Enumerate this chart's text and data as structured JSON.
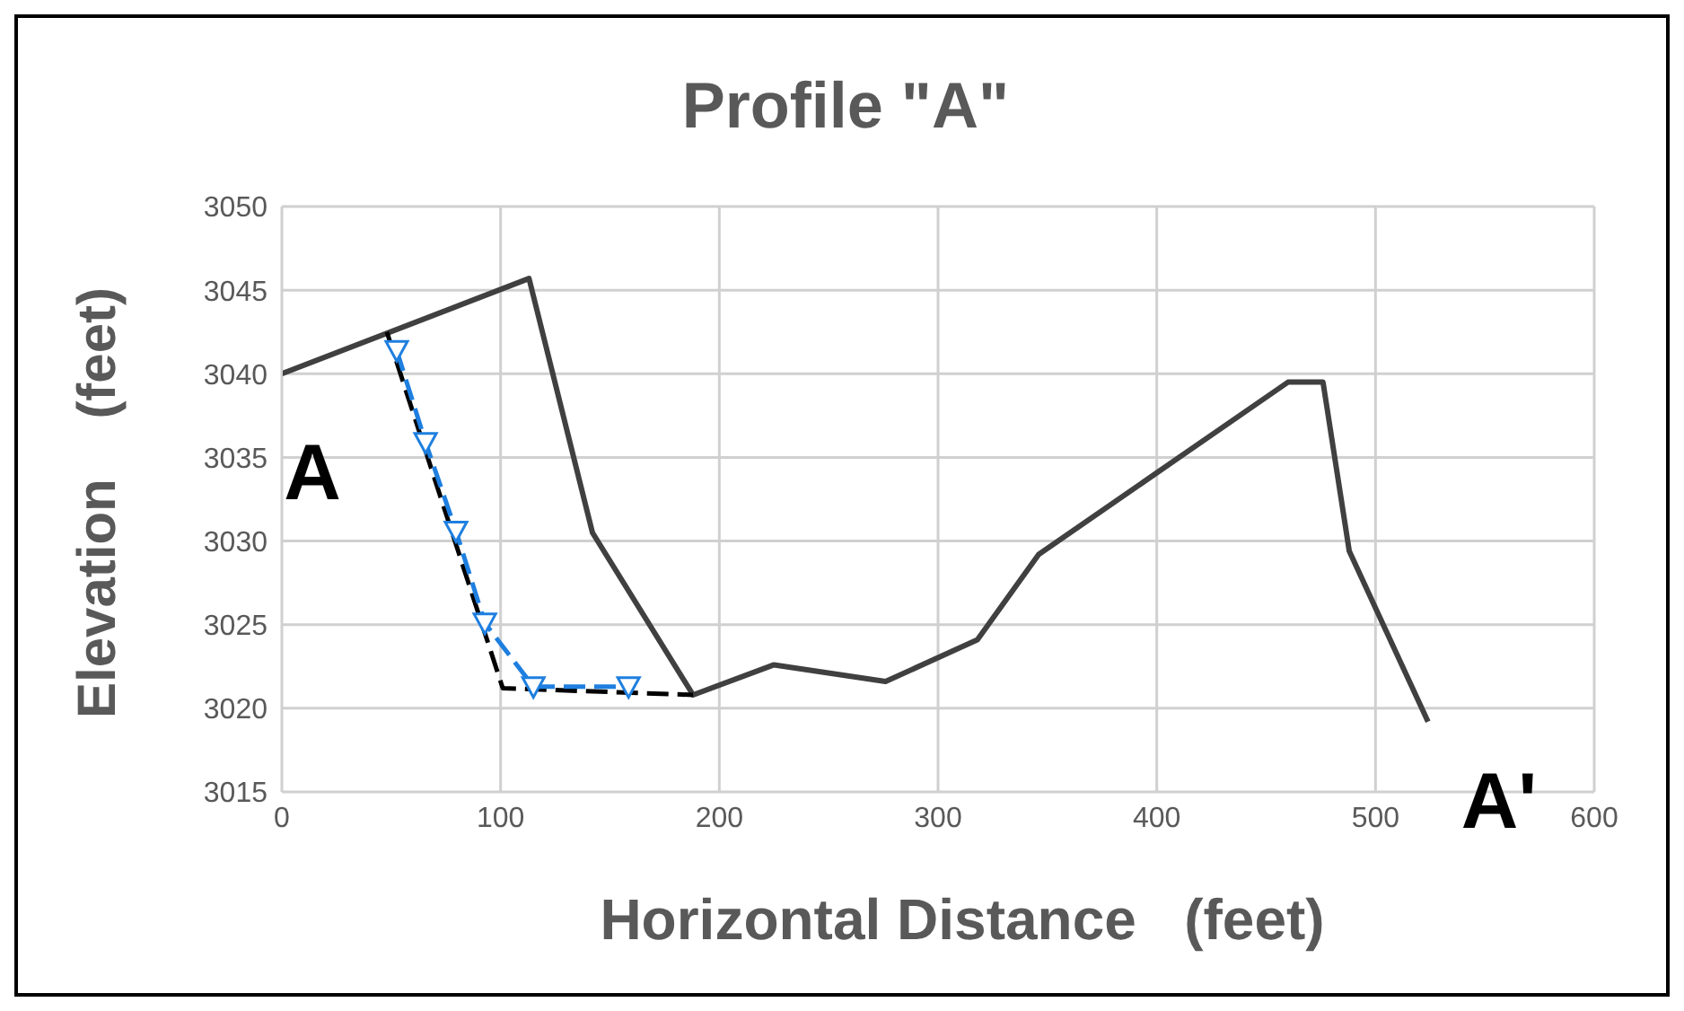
{
  "chart_data": {
    "type": "line",
    "title": "Profile \"A\"",
    "xlabel": "Horizontal Distance   (feet)",
    "ylabel": "Elevation    (feet)",
    "xlim": [
      0,
      600
    ],
    "xticks": [
      0,
      100,
      200,
      300,
      400,
      500,
      600
    ],
    "ylim": [
      3015,
      3050
    ],
    "yticks": [
      3015,
      3020,
      3025,
      3030,
      3035,
      3040,
      3045,
      3050
    ],
    "grid": true,
    "annotations": [
      "A",
      "A'"
    ],
    "series": [
      {
        "color": "#404040",
        "line_style": "solid",
        "marker": "none",
        "x": [
          0,
          113,
          142,
          188,
          225,
          276,
          318,
          346,
          460,
          476,
          488,
          524
        ],
        "values": [
          3040,
          3045.7,
          3030.5,
          3020.8,
          3022.6,
          3021.6,
          3024.1,
          3029.2,
          3039.5,
          3039.5,
          3029.4,
          3019.2
        ]
      },
      {
        "color": "#000000",
        "line_style": "dashed",
        "marker": "none",
        "x": [
          48,
          101,
          188
        ],
        "values": [
          3042.5,
          3021.2,
          3020.8
        ]
      },
      {
        "color": "#1e7fe0",
        "line_style": "dashed",
        "marker": "triangle",
        "x": [
          52.5,
          65.7,
          79.6,
          92.8,
          115,
          158.5
        ],
        "values": [
          3041.4,
          3035.9,
          3030.6,
          3025.1,
          3021.3,
          3021.3
        ]
      }
    ]
  }
}
